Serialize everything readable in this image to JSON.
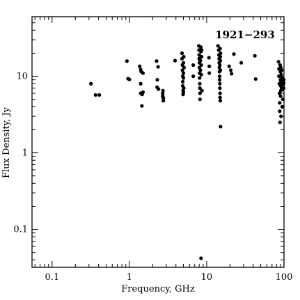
{
  "chart_data": {
    "type": "scatter",
    "title": "1921−293",
    "xlabel": "Frequency, GHz",
    "ylabel": "Flux Density, Jy",
    "x_scale": "log",
    "y_scale": "log",
    "xlim": [
      0.055,
      100
    ],
    "ylim": [
      0.032,
      60
    ],
    "x_ticks": [
      {
        "value": 0.1,
        "label": "0.1"
      },
      {
        "value": 1,
        "label": "1"
      },
      {
        "value": 10,
        "label": "10"
      },
      {
        "value": 100,
        "label": "100"
      }
    ],
    "y_ticks": [
      {
        "value": 0.1,
        "label": "0.1"
      },
      {
        "value": 1,
        "label": "1"
      },
      {
        "value": 10,
        "label": "10"
      }
    ],
    "grid": false,
    "marker_color": "#000000",
    "series": [
      {
        "points": [
          [
            0.318,
            8.0
          ],
          [
            0.365,
            5.7
          ],
          [
            0.408,
            5.7
          ],
          [
            0.93,
            15.8
          ],
          [
            0.96,
            9.3
          ],
          [
            1.0,
            9.1
          ],
          [
            1.36,
            13.5
          ],
          [
            1.4,
            12.2
          ],
          [
            1.4,
            8.0
          ],
          [
            1.4,
            6.0
          ],
          [
            1.42,
            11.5
          ],
          [
            1.45,
            4.1
          ],
          [
            1.46,
            5.8
          ],
          [
            1.5,
            11.0
          ],
          [
            1.5,
            6.2
          ],
          [
            2.25,
            15.8
          ],
          [
            2.28,
            7.2
          ],
          [
            2.3,
            9.0
          ],
          [
            2.35,
            13.3
          ],
          [
            2.38,
            6.8
          ],
          [
            2.7,
            6.0
          ],
          [
            2.7,
            5.5
          ],
          [
            2.75,
            5.2
          ],
          [
            2.75,
            4.8
          ],
          [
            2.72,
            6.5
          ],
          [
            3.9,
            16.0
          ],
          [
            4.8,
            20.0
          ],
          [
            4.8,
            17.0
          ],
          [
            4.85,
            14.0
          ],
          [
            4.85,
            12.0
          ],
          [
            4.9,
            10.0
          ],
          [
            4.9,
            8.5
          ],
          [
            4.9,
            7.5
          ],
          [
            4.95,
            6.5
          ],
          [
            4.95,
            5.8
          ],
          [
            5.0,
            15.0
          ],
          [
            5.0,
            11.0
          ],
          [
            5.0,
            9.5
          ],
          [
            5.05,
            18.0
          ],
          [
            5.05,
            7.0
          ],
          [
            5.1,
            13.0
          ],
          [
            5.0,
            6.2
          ],
          [
            6.7,
            14.0
          ],
          [
            6.7,
            10.0
          ],
          [
            7.9,
            25.0
          ],
          [
            7.95,
            22.0
          ],
          [
            8.0,
            19.0
          ],
          [
            8.0,
            17.0
          ],
          [
            8.05,
            15.0
          ],
          [
            8.05,
            13.0
          ],
          [
            8.1,
            11.0
          ],
          [
            8.1,
            9.5
          ],
          [
            8.15,
            8.0
          ],
          [
            8.15,
            7.0
          ],
          [
            8.2,
            6.0
          ],
          [
            8.2,
            5.0
          ],
          [
            8.3,
            12.0
          ],
          [
            8.3,
            16.0
          ],
          [
            8.4,
            21.0
          ],
          [
            8.4,
            24.0
          ],
          [
            8.45,
            0.042
          ],
          [
            8.6,
            22.0
          ],
          [
            8.6,
            18.0
          ],
          [
            8.7,
            6.5
          ],
          [
            8.5,
            10.5
          ],
          [
            8.5,
            14.0
          ],
          [
            10.7,
            17.5
          ],
          [
            10.8,
            13.5
          ],
          [
            10.8,
            11.0
          ],
          [
            14.0,
            25.0
          ],
          [
            14.3,
            22.0
          ],
          [
            14.4,
            19.0
          ],
          [
            14.5,
            17.0
          ],
          [
            14.5,
            15.0
          ],
          [
            14.6,
            13.0
          ],
          [
            14.6,
            11.5
          ],
          [
            14.7,
            10.0
          ],
          [
            14.7,
            9.0
          ],
          [
            14.8,
            8.0
          ],
          [
            14.8,
            7.0
          ],
          [
            14.9,
            6.0
          ],
          [
            14.9,
            5.3
          ],
          [
            15.0,
            4.8
          ],
          [
            15.0,
            12.0
          ],
          [
            15.0,
            16.0
          ],
          [
            15.1,
            20.0
          ],
          [
            15.1,
            2.2
          ],
          [
            14.9,
            23.0
          ],
          [
            15.0,
            18.0
          ],
          [
            14.8,
            14.0
          ],
          [
            19.5,
            13.5
          ],
          [
            20.5,
            12.0
          ],
          [
            21.0,
            10.8
          ],
          [
            22.5,
            19.5
          ],
          [
            28.0,
            15.0
          ],
          [
            42.0,
            18.5
          ],
          [
            43.0,
            9.2
          ],
          [
            85.0,
            15.5
          ],
          [
            86.0,
            12.5
          ],
          [
            86.0,
            10.0
          ],
          [
            87.0,
            8.0
          ],
          [
            87.5,
            6.0
          ],
          [
            88.0,
            4.5
          ],
          [
            88.0,
            3.5
          ],
          [
            89.0,
            2.5
          ],
          [
            89.0,
            14.0
          ],
          [
            90.0,
            11.5
          ],
          [
            90.0,
            9.0
          ],
          [
            90.5,
            7.5
          ],
          [
            90.5,
            5.5
          ],
          [
            91.0,
            6.5
          ],
          [
            91.0,
            13.0
          ],
          [
            91.5,
            3.0
          ],
          [
            92.0,
            8.5
          ],
          [
            92.0,
            10.5
          ],
          [
            93.0,
            7.0
          ],
          [
            93.5,
            12.0
          ],
          [
            94.0,
            9.5
          ],
          [
            95.0,
            4.0
          ],
          [
            96.0,
            8.0
          ],
          [
            96.0,
            6.8
          ],
          [
            97.0,
            5.0
          ],
          [
            98.0,
            7.8
          ],
          [
            99.0,
            7.0
          ],
          [
            99.0,
            8.2
          ],
          [
            99.5,
            9.0
          ]
        ]
      }
    ]
  }
}
